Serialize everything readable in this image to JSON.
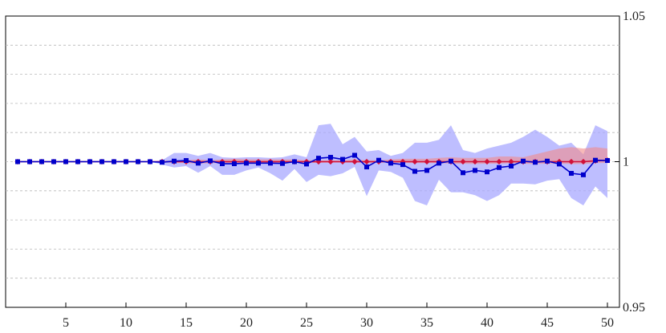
{
  "chart_data": {
    "type": "line",
    "title": "",
    "xlabel": "",
    "ylabel": "",
    "xlim": [
      0,
      51
    ],
    "ylim": [
      0.95,
      1.05
    ],
    "x_ticks": [
      5,
      10,
      15,
      20,
      25,
      30,
      35,
      40,
      45,
      50
    ],
    "y_ticks": [
      0.95,
      1,
      1.05
    ],
    "y_tick_labels": [
      "0.95",
      "1",
      "1.05"
    ],
    "y_axis_side": "right",
    "grid": "horizontal dashed",
    "x": [
      1,
      2,
      3,
      4,
      5,
      6,
      7,
      8,
      9,
      10,
      11,
      12,
      13,
      14,
      15,
      16,
      17,
      18,
      19,
      20,
      21,
      22,
      23,
      24,
      25,
      26,
      27,
      28,
      29,
      30,
      31,
      32,
      33,
      34,
      35,
      36,
      37,
      38,
      39,
      40,
      41,
      42,
      43,
      44,
      45,
      46,
      47,
      48,
      49,
      50
    ],
    "series": [
      {
        "color": "#d0103a",
        "band_color": "#f28b8b",
        "marker": "diamond",
        "values": [
          1,
          1,
          1,
          1,
          1,
          1,
          1,
          1,
          1,
          1,
          1,
          1,
          1,
          1,
          1,
          1,
          1,
          1,
          1,
          1,
          1,
          1,
          1,
          1,
          1,
          1,
          1,
          1,
          1,
          1,
          1,
          1,
          1,
          1,
          1,
          1,
          1,
          1,
          1,
          1,
          1,
          1,
          1,
          1,
          1,
          1,
          1,
          1,
          1.0003,
          1.0005
        ],
        "band_lower": [
          1,
          1,
          1,
          1,
          1,
          1,
          1,
          1,
          1,
          1,
          1,
          1,
          1,
          0.9995,
          0.9995,
          0.9993,
          0.9995,
          0.9995,
          0.9996,
          0.9996,
          0.9996,
          0.9997,
          0.9996,
          0.9996,
          0.9996,
          0.9996,
          0.9997,
          0.9997,
          0.9997,
          0.9996,
          0.9997,
          0.9997,
          0.9996,
          0.9995,
          0.9995,
          0.9995,
          0.9993,
          0.9993,
          0.9992,
          0.9993,
          0.9993,
          0.9995,
          0.9993,
          0.9992,
          0.9993,
          0.9993,
          0.9992,
          0.9992,
          0.9995,
          0.9996
        ],
        "band_upper": [
          1,
          1,
          1,
          1,
          1,
          1,
          1,
          1,
          1,
          1,
          1,
          1,
          1,
          1.0005,
          1.0005,
          1.0008,
          1.0005,
          1.0008,
          1.001,
          1.0008,
          1.0008,
          1.0008,
          1.0008,
          1.0008,
          1.0005,
          1.0005,
          1.0005,
          1.0005,
          1.0008,
          1.0005,
          1.0005,
          1.0008,
          1.001,
          1.001,
          1.001,
          1.0013,
          1.0015,
          1.0013,
          1.0013,
          1.0013,
          1.0018,
          1.0018,
          1.0015,
          1.0025,
          1.0035,
          1.0045,
          1.005,
          1.0045,
          1.005,
          1.0045
        ]
      },
      {
        "color": "#0000cc",
        "band_color": "#a8a8ff",
        "marker": "square",
        "values": [
          1,
          1,
          1,
          1,
          1,
          1,
          1,
          1,
          1,
          1,
          1,
          1,
          0.9998,
          1.0002,
          1.0004,
          0.9995,
          1.0003,
          0.9993,
          0.9993,
          0.9995,
          0.9995,
          0.9995,
          0.9994,
          1,
          0.9992,
          1.0012,
          1.0015,
          1.0008,
          1.0022,
          0.9982,
          1.0005,
          0.9995,
          0.999,
          0.9967,
          0.997,
          0.9995,
          1.0002,
          0.9962,
          0.997,
          0.9965,
          0.998,
          0.9985,
          1.0002,
          0.9998,
          1.0002,
          0.9992,
          0.996,
          0.9955,
          1.0005,
          1.0004
        ],
        "band_lower": [
          1,
          1,
          1,
          1,
          1,
          1,
          1,
          1,
          1,
          1,
          1,
          1,
          0.999,
          0.998,
          0.9985,
          0.9962,
          0.9985,
          0.9955,
          0.9955,
          0.997,
          0.998,
          0.996,
          0.9935,
          0.9975,
          0.993,
          0.9955,
          0.995,
          0.996,
          0.9982,
          0.9882,
          0.997,
          0.9965,
          0.9945,
          0.9865,
          0.985,
          0.9938,
          0.9895,
          0.9895,
          0.9885,
          0.9865,
          0.9885,
          0.9925,
          0.9925,
          0.9922,
          0.9935,
          0.994,
          0.9875,
          0.985,
          0.9915,
          0.9875
        ],
        "band_upper": [
          1,
          1,
          1,
          1,
          1,
          1,
          1,
          1,
          1,
          1,
          1,
          1,
          1.0005,
          1.003,
          1.003,
          1.002,
          1.003,
          1.0015,
          1.0013,
          1.0015,
          1.0015,
          1.0013,
          1.0015,
          1.0025,
          1.0015,
          1.0125,
          1.013,
          1.006,
          1.0085,
          1.0035,
          1.004,
          1.002,
          1.003,
          1.0065,
          1.0065,
          1.0075,
          1.0125,
          1.004,
          1.003,
          1.0045,
          1.0055,
          1.0065,
          1.0085,
          1.011,
          1.0085,
          1.0055,
          1.0065,
          1.0025,
          1.0125,
          1.0105
        ]
      }
    ]
  }
}
